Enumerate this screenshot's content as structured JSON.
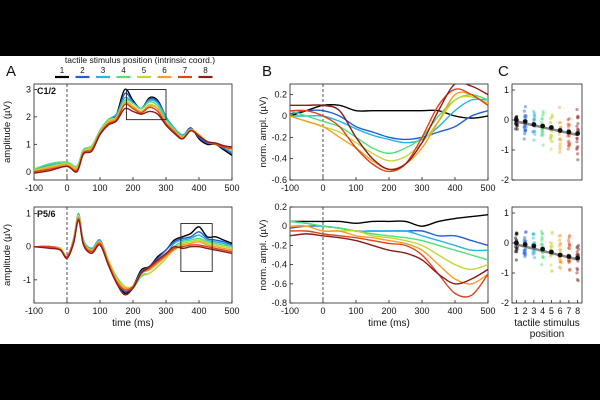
{
  "panel_labels": [
    "A",
    "B",
    "C"
  ],
  "legend": {
    "title": "tactile stimulus position (intrinsic coord.)",
    "entries": [
      "1",
      "2",
      "3",
      "4",
      "5",
      "6",
      "7",
      "8"
    ],
    "colors": [
      "#000000",
      "#1f5fd8",
      "#26b3e6",
      "#4fe07a",
      "#c4d632",
      "#f5a021",
      "#e0421a",
      "#8b1a1a"
    ]
  },
  "chart_data": [
    {
      "id": "A_top",
      "type": "line",
      "panel": "A",
      "region_label": "C1/2",
      "xlabel": "",
      "ylabel": "amplitude (µV)",
      "xlim": [
        -100,
        500
      ],
      "ylim": [
        -0.3,
        3.2
      ],
      "xticks": [
        -100,
        0,
        100,
        200,
        300,
        400,
        500
      ],
      "yticks": [
        0,
        1,
        2,
        3
      ],
      "vline_at": 0,
      "box": {
        "x": [
          180,
          300
        ],
        "y": [
          1.9,
          3.0
        ]
      },
      "x": [
        -100,
        -50,
        0,
        30,
        50,
        75,
        100,
        125,
        150,
        175,
        200,
        225,
        250,
        275,
        300,
        325,
        350,
        375,
        400,
        425,
        450,
        475,
        500
      ],
      "series": [
        {
          "name": "1",
          "values": [
            0.1,
            0.2,
            0.3,
            0.1,
            0.8,
            0.9,
            1.5,
            1.9,
            2.1,
            3.0,
            2.6,
            2.3,
            2.7,
            2.6,
            2.0,
            1.5,
            1.3,
            1.6,
            1.2,
            1.0,
            1.0,
            0.8,
            0.6
          ]
        },
        {
          "name": "2",
          "values": [
            0.05,
            0.2,
            0.3,
            0.1,
            0.8,
            0.9,
            1.4,
            1.8,
            2.0,
            2.85,
            2.55,
            2.3,
            2.65,
            2.55,
            2.0,
            1.5,
            1.3,
            1.6,
            1.25,
            1.05,
            1.0,
            0.85,
            0.65
          ]
        },
        {
          "name": "3",
          "values": [
            0.1,
            0.25,
            0.3,
            0.2,
            0.8,
            0.9,
            1.5,
            1.9,
            2.1,
            2.7,
            2.5,
            2.3,
            2.6,
            2.5,
            2.0,
            1.6,
            1.35,
            1.55,
            1.3,
            1.1,
            1.0,
            0.9,
            0.7
          ]
        },
        {
          "name": "4",
          "values": [
            0.1,
            0.3,
            0.35,
            0.2,
            0.8,
            0.95,
            1.5,
            1.9,
            2.0,
            2.6,
            2.5,
            2.3,
            2.55,
            2.4,
            1.9,
            1.55,
            1.3,
            1.5,
            1.35,
            1.1,
            1.0,
            0.9,
            0.8
          ]
        },
        {
          "name": "5",
          "values": [
            0.05,
            0.2,
            0.3,
            0.15,
            0.75,
            0.9,
            1.45,
            1.85,
            2.0,
            2.55,
            2.4,
            2.2,
            2.45,
            2.3,
            1.8,
            1.5,
            1.25,
            1.5,
            1.3,
            1.1,
            1.0,
            0.9,
            0.8
          ]
        },
        {
          "name": "6",
          "values": [
            0.0,
            0.15,
            0.25,
            0.1,
            0.7,
            0.85,
            1.4,
            1.8,
            1.95,
            2.5,
            2.35,
            2.2,
            2.4,
            2.3,
            1.8,
            1.5,
            1.25,
            1.55,
            1.35,
            1.1,
            1.0,
            0.9,
            0.8
          ]
        },
        {
          "name": "7",
          "values": [
            0.0,
            0.1,
            0.2,
            0.05,
            0.7,
            0.8,
            1.4,
            1.75,
            1.9,
            2.45,
            2.3,
            2.15,
            2.35,
            2.2,
            1.75,
            1.45,
            1.2,
            1.5,
            1.3,
            1.1,
            1.0,
            0.9,
            0.85
          ]
        },
        {
          "name": "8",
          "values": [
            -0.05,
            0.05,
            0.2,
            0.0,
            0.65,
            0.75,
            1.35,
            1.7,
            1.85,
            2.3,
            2.2,
            2.1,
            2.2,
            2.1,
            1.7,
            1.4,
            1.2,
            1.5,
            1.3,
            1.1,
            1.05,
            0.95,
            0.9
          ]
        }
      ]
    },
    {
      "id": "A_bot",
      "type": "line",
      "panel": "A",
      "region_label": "P5/6",
      "xlabel": "time (ms)",
      "ylabel": "amplitude (µV)",
      "xlim": [
        -100,
        500
      ],
      "ylim": [
        -1.7,
        1.2
      ],
      "xticks": [
        -100,
        0,
        100,
        200,
        300,
        400,
        500
      ],
      "yticks": [
        -1,
        0,
        1
      ],
      "vline_at": 0,
      "box": {
        "x": [
          345,
          440
        ],
        "y": [
          -0.75,
          0.7
        ]
      },
      "x": [
        -100,
        -50,
        -20,
        0,
        20,
        35,
        50,
        75,
        100,
        125,
        150,
        175,
        200,
        225,
        250,
        275,
        300,
        325,
        350,
        375,
        400,
        425,
        450,
        475,
        500
      ],
      "series": [
        {
          "name": "1",
          "values": [
            0.0,
            0.0,
            -0.1,
            -0.3,
            0.2,
            0.9,
            0.1,
            -0.1,
            0.2,
            -0.5,
            -1.0,
            -1.4,
            -1.2,
            -0.7,
            -0.6,
            -0.3,
            -0.1,
            0.2,
            0.3,
            0.4,
            0.6,
            0.3,
            0.3,
            0.2,
            0.1
          ]
        },
        {
          "name": "2",
          "values": [
            0.0,
            0.0,
            -0.1,
            -0.3,
            0.2,
            0.95,
            0.15,
            -0.1,
            0.2,
            -0.45,
            -1.0,
            -1.35,
            -1.2,
            -0.75,
            -0.6,
            -0.35,
            -0.1,
            0.15,
            0.25,
            0.3,
            0.45,
            0.25,
            0.2,
            0.15,
            0.05
          ]
        },
        {
          "name": "3",
          "values": [
            0.0,
            0.0,
            -0.05,
            -0.3,
            0.25,
            1.0,
            0.2,
            -0.05,
            0.2,
            -0.4,
            -0.95,
            -1.3,
            -1.2,
            -0.8,
            -0.7,
            -0.5,
            -0.25,
            0.1,
            0.2,
            0.25,
            0.35,
            0.2,
            0.15,
            0.1,
            0.0
          ]
        },
        {
          "name": "4",
          "values": [
            0.0,
            0.0,
            -0.05,
            -0.3,
            0.2,
            0.95,
            0.15,
            -0.1,
            0.15,
            -0.4,
            -0.9,
            -1.2,
            -1.25,
            -0.9,
            -0.8,
            -0.6,
            -0.35,
            0.0,
            0.15,
            0.2,
            0.25,
            0.15,
            0.1,
            0.05,
            0.0
          ]
        },
        {
          "name": "5",
          "values": [
            0.0,
            0.0,
            -0.05,
            -0.3,
            0.2,
            0.95,
            0.15,
            -0.1,
            0.15,
            -0.4,
            -0.95,
            -1.2,
            -1.2,
            -0.85,
            -0.8,
            -0.6,
            -0.35,
            -0.05,
            0.1,
            0.15,
            0.2,
            0.1,
            0.05,
            0.0,
            -0.05
          ]
        },
        {
          "name": "6",
          "values": [
            0.0,
            0.0,
            -0.05,
            -0.3,
            0.2,
            0.9,
            0.1,
            -0.1,
            0.15,
            -0.45,
            -1.0,
            -1.25,
            -1.2,
            -0.8,
            -0.7,
            -0.5,
            -0.3,
            -0.1,
            0.05,
            0.1,
            0.15,
            0.05,
            0.0,
            -0.05,
            -0.1
          ]
        },
        {
          "name": "7",
          "values": [
            0.0,
            0.0,
            -0.1,
            -0.3,
            0.15,
            0.85,
            0.1,
            -0.15,
            0.1,
            -0.5,
            -1.05,
            -1.3,
            -1.2,
            -0.8,
            -0.65,
            -0.45,
            -0.25,
            -0.05,
            0.0,
            0.05,
            0.05,
            0.0,
            -0.05,
            -0.1,
            -0.15
          ]
        },
        {
          "name": "8",
          "values": [
            0.0,
            -0.05,
            -0.1,
            -0.35,
            0.1,
            0.8,
            0.05,
            -0.2,
            0.05,
            -0.55,
            -1.1,
            -1.45,
            -1.25,
            -0.8,
            -0.6,
            -0.4,
            -0.2,
            0.0,
            -0.05,
            0.0,
            0.0,
            -0.05,
            -0.1,
            -0.15,
            -0.2
          ]
        }
      ]
    },
    {
      "id": "B_top",
      "type": "line",
      "panel": "B",
      "xlabel": "",
      "ylabel": "norm. ampl. (µV)",
      "xlim": [
        -100,
        500
      ],
      "ylim": [
        -0.6,
        0.3
      ],
      "xticks": [
        -100,
        0,
        100,
        200,
        300,
        400,
        500
      ],
      "yticks": [
        -0.6,
        -0.4,
        -0.2,
        0,
        0.2
      ],
      "vline_at": 0,
      "x": [
        -100,
        -50,
        0,
        50,
        100,
        150,
        200,
        250,
        300,
        350,
        400,
        450,
        500
      ],
      "series": [
        {
          "name": "1",
          "values": [
            0.0,
            0.05,
            0.1,
            0.1,
            0.05,
            0.05,
            0.05,
            0.05,
            0.05,
            0.05,
            0.0,
            -0.02,
            0.0
          ]
        },
        {
          "name": "2",
          "values": [
            0.02,
            0.05,
            0.05,
            0.0,
            -0.1,
            -0.15,
            -0.2,
            -0.22,
            -0.2,
            -0.15,
            -0.1,
            0.0,
            0.05
          ]
        },
        {
          "name": "3",
          "values": [
            0.0,
            0.0,
            0.0,
            -0.05,
            -0.12,
            -0.18,
            -0.22,
            -0.25,
            -0.22,
            -0.1,
            0.05,
            0.15,
            0.15
          ]
        },
        {
          "name": "4",
          "values": [
            0.05,
            0.0,
            -0.05,
            -0.1,
            -0.2,
            -0.3,
            -0.35,
            -0.3,
            -0.2,
            0.0,
            0.15,
            0.2,
            0.15
          ]
        },
        {
          "name": "5",
          "values": [
            0.0,
            -0.05,
            -0.1,
            -0.15,
            -0.25,
            -0.35,
            -0.42,
            -0.38,
            -0.25,
            -0.05,
            0.15,
            0.18,
            0.12
          ]
        },
        {
          "name": "6",
          "values": [
            0.0,
            -0.05,
            -0.1,
            -0.2,
            -0.3,
            -0.42,
            -0.5,
            -0.45,
            -0.3,
            -0.05,
            0.2,
            0.2,
            0.1
          ]
        },
        {
          "name": "7",
          "values": [
            0.05,
            0.05,
            0.0,
            -0.1,
            -0.3,
            -0.45,
            -0.52,
            -0.45,
            -0.2,
            0.1,
            0.25,
            0.2,
            0.1
          ]
        },
        {
          "name": "8",
          "values": [
            0.1,
            0.1,
            0.1,
            0.05,
            -0.2,
            -0.4,
            -0.5,
            -0.45,
            -0.25,
            0.05,
            0.3,
            0.28,
            0.2
          ]
        }
      ]
    },
    {
      "id": "B_bot",
      "type": "line",
      "panel": "B",
      "xlabel": "time (ms)",
      "ylabel": "norm. ampl. (µV)",
      "xlim": [
        -100,
        500
      ],
      "ylim": [
        -0.8,
        0.2
      ],
      "xticks": [
        -100,
        0,
        100,
        200,
        300,
        400,
        500
      ],
      "yticks": [
        -0.8,
        -0.6,
        -0.4,
        -0.2,
        0,
        0.2
      ],
      "vline_at": 0,
      "x": [
        -100,
        -50,
        0,
        50,
        100,
        150,
        200,
        250,
        300,
        350,
        400,
        450,
        500
      ],
      "series": [
        {
          "name": "1",
          "values": [
            0.05,
            0.05,
            0.05,
            0.05,
            0.03,
            0.05,
            0.05,
            0.05,
            0.0,
            0.05,
            0.08,
            0.1,
            0.12
          ]
        },
        {
          "name": "2",
          "values": [
            -0.02,
            0.0,
            0.0,
            -0.02,
            -0.05,
            -0.05,
            -0.05,
            -0.05,
            -0.05,
            -0.1,
            -0.1,
            -0.15,
            -0.2
          ]
        },
        {
          "name": "3",
          "values": [
            0.05,
            0.03,
            0.0,
            -0.02,
            -0.05,
            -0.05,
            -0.05,
            -0.05,
            -0.1,
            -0.15,
            -0.2,
            -0.25,
            -0.25
          ]
        },
        {
          "name": "4",
          "values": [
            0.05,
            0.03,
            0.0,
            -0.02,
            -0.05,
            -0.08,
            -0.1,
            -0.12,
            -0.15,
            -0.2,
            -0.25,
            -0.3,
            -0.35
          ]
        },
        {
          "name": "5",
          "values": [
            0.0,
            0.0,
            -0.05,
            -0.05,
            -0.05,
            -0.1,
            -0.12,
            -0.15,
            -0.2,
            -0.3,
            -0.4,
            -0.45,
            -0.4
          ]
        },
        {
          "name": "6",
          "values": [
            0.0,
            0.0,
            -0.05,
            -0.05,
            -0.1,
            -0.12,
            -0.15,
            -0.18,
            -0.25,
            -0.4,
            -0.55,
            -0.6,
            -0.5
          ]
        },
        {
          "name": "7",
          "values": [
            -0.05,
            -0.05,
            -0.08,
            -0.1,
            -0.12,
            -0.15,
            -0.18,
            -0.2,
            -0.3,
            -0.5,
            -0.7,
            -0.72,
            -0.5
          ]
        },
        {
          "name": "8",
          "values": [
            -0.1,
            -0.08,
            -0.1,
            -0.12,
            -0.15,
            -0.2,
            -0.25,
            -0.28,
            -0.35,
            -0.5,
            -0.6,
            -0.55,
            -0.45
          ]
        }
      ]
    },
    {
      "id": "C_top",
      "type": "scatter",
      "panel": "C",
      "xlabel": "",
      "ylabel": "",
      "xlim": [
        0.5,
        8.5
      ],
      "ylim": [
        -2,
        1.2
      ],
      "xticks": [],
      "yticks": [
        -2,
        -1,
        0,
        1
      ],
      "mean_values": [
        0.0,
        -0.05,
        -0.15,
        -0.2,
        -0.25,
        -0.35,
        -0.4,
        -0.45
      ],
      "fit": {
        "x": [
          1,
          8
        ],
        "y": [
          -0.05,
          -0.5
        ]
      },
      "spread": [
        0.4,
        0.45,
        0.5,
        0.55,
        0.6,
        0.6,
        0.65,
        0.7
      ]
    },
    {
      "id": "C_bot",
      "type": "scatter",
      "panel": "C",
      "xlabel": "tactile stimulus\nposition",
      "ylabel": "",
      "xlim": [
        0.5,
        8.5
      ],
      "ylim": [
        -2,
        1.2
      ],
      "xticks": [
        1,
        2,
        3,
        4,
        5,
        6,
        7,
        8
      ],
      "yticks": [
        -2,
        -1,
        0,
        1
      ],
      "mean_values": [
        0.0,
        -0.05,
        -0.1,
        -0.2,
        -0.3,
        -0.4,
        -0.45,
        -0.5
      ],
      "fit": {
        "x": [
          1,
          8
        ],
        "y": [
          -0.05,
          -0.55
        ]
      },
      "spread": [
        0.45,
        0.5,
        0.5,
        0.55,
        0.6,
        0.65,
        0.65,
        0.7
      ]
    }
  ]
}
